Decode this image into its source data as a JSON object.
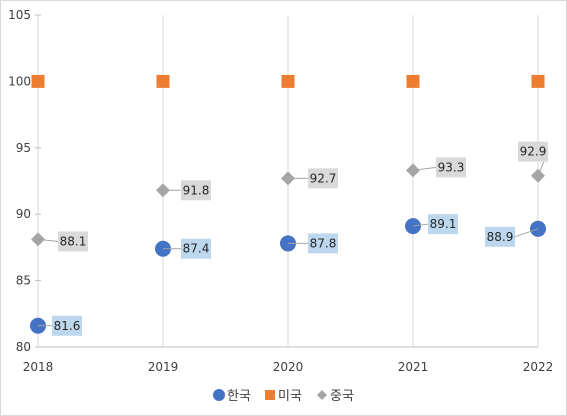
{
  "chart_data": {
    "type": "scatter",
    "x": [
      2018,
      2019,
      2020,
      2021,
      2022
    ],
    "ylim": [
      80,
      105
    ],
    "yticks": [
      80,
      85,
      90,
      95,
      100,
      105
    ],
    "grid": "vertical",
    "legend_position": "bottom",
    "series": [
      {
        "name": "한국",
        "marker": "circle",
        "color": "#4472c4",
        "label_bg": "#bdd7ee",
        "values": [
          81.6,
          87.4,
          87.8,
          89.1,
          88.9
        ],
        "labels": [
          "81.6",
          "87.4",
          "87.8",
          "89.1",
          "88.9"
        ]
      },
      {
        "name": "미국",
        "marker": "square",
        "color": "#ed7d31",
        "values": [
          100,
          100,
          100,
          100,
          100
        ],
        "labels": []
      },
      {
        "name": "중국",
        "marker": "diamond",
        "color": "#a5a5a5",
        "label_bg": "#d9d9d9",
        "values": [
          88.1,
          91.8,
          92.7,
          93.3,
          92.9
        ],
        "labels": [
          "88.1",
          "91.8",
          "92.7",
          "93.3",
          "92.9"
        ]
      }
    ]
  }
}
